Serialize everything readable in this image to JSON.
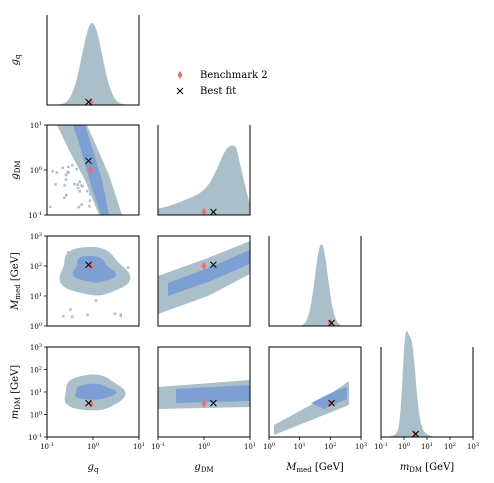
{
  "chart_data": {
    "type": "corner",
    "title": "",
    "legend": {
      "placement": "top-center",
      "entries": [
        {
          "label": "Benchmark 2",
          "marker": "diamond",
          "color": "#e8716d"
        },
        {
          "label": "Best fit",
          "marker": "x",
          "color": "#000000"
        }
      ]
    },
    "colors": {
      "outer": "#aabfca",
      "inner": "#7d9fd4",
      "benchmark": "#e8716d",
      "bestfit": "#000000"
    },
    "parameters": [
      {
        "name": "g_q",
        "symbol": "g",
        "sub": "q",
        "unit": "",
        "range": [
          0.1,
          10
        ],
        "log": true,
        "benchmark": 0.9,
        "bestfit": 0.8
      },
      {
        "name": "g_DM",
        "symbol": "g",
        "sub": "DM",
        "unit": "",
        "range": [
          0.1,
          10
        ],
        "log": true,
        "benchmark": 1.0,
        "bestfit": 1.6
      },
      {
        "name": "M_med",
        "symbol": "M",
        "sub": "med",
        "unit": "[GeV]",
        "range": [
          1,
          1000
        ],
        "log": true,
        "benchmark": 100,
        "bestfit": 110
      },
      {
        "name": "m_DM",
        "symbol": "m",
        "sub": "DM",
        "unit": "[GeV]",
        "range": [
          0.1,
          1000
        ],
        "log": true,
        "benchmark": 3,
        "bestfit": 3.2
      }
    ],
    "tick_labels": {
      "g_range": [
        "10",
        "10",
        "10"
      ],
      "g_range_exp": [
        "-1",
        "0",
        "1"
      ],
      "m_range": [
        "10",
        "10",
        "10",
        "10",
        "10"
      ],
      "m_range_exp": [
        "-1",
        "0",
        "1",
        "2",
        "3"
      ],
      "mmed_range": [
        "10",
        "10",
        "10",
        "10"
      ],
      "mmed_range_exp": [
        "0",
        "1",
        "2",
        "3"
      ]
    },
    "marginals": [
      {
        "param": "g_q",
        "peak_at": 0.85,
        "log_sigma": 0.25
      },
      {
        "param": "g_DM",
        "peak_at": 3.5,
        "log_sigma": 0.6,
        "skew": "rising"
      },
      {
        "param": "M_med",
        "peak_at": 60,
        "log_sigma": 0.25
      },
      {
        "param": "m_DM",
        "peak_at": 3,
        "log_sigma": 0.3
      }
    ],
    "joint": [
      {
        "x": "g_q",
        "y": "g_DM",
        "shape": "anticorrelated band"
      },
      {
        "x": "g_q",
        "y": "M_med",
        "center": [
          0.7,
          80
        ]
      },
      {
        "x": "g_DM",
        "y": "M_med",
        "shape": "rising band"
      },
      {
        "x": "g_q",
        "y": "m_DM",
        "center": [
          0.7,
          3
        ]
      },
      {
        "x": "g_DM",
        "y": "m_DM",
        "center": [
          1.3,
          3
        ]
      },
      {
        "x": "M_med",
        "y": "m_DM",
        "shape": "rising band"
      }
    ]
  }
}
